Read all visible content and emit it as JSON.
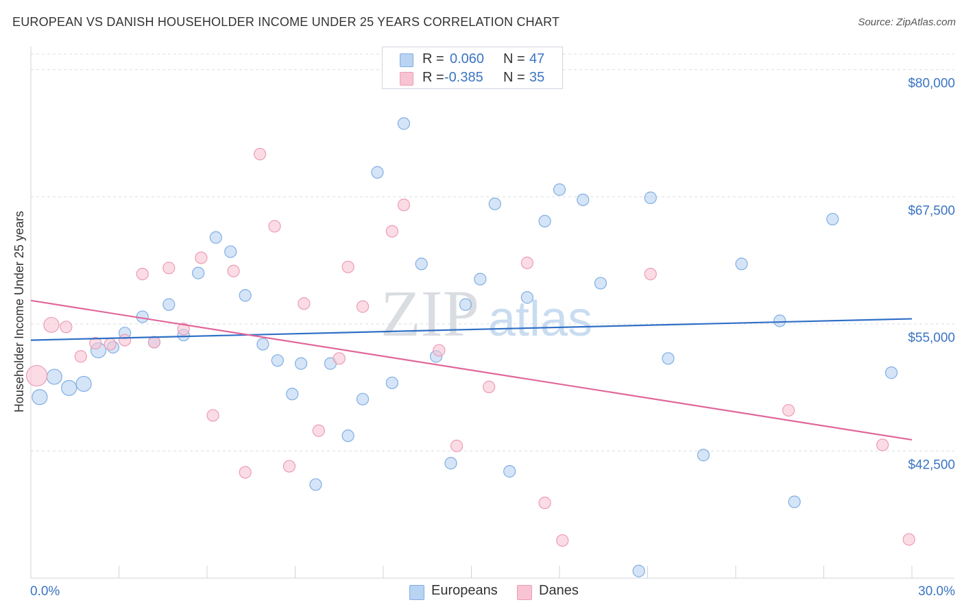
{
  "header": {
    "title": "EUROPEAN VS DANISH HOUSEHOLDER INCOME UNDER 25 YEARS CORRELATION CHART",
    "source": "Source: ZipAtlas.com"
  },
  "legend": {
    "rows": [
      {
        "r_label": "R =",
        "r_value": "0.060",
        "n_label": "N =",
        "n_value": "47"
      },
      {
        "r_label": "R =",
        "r_value": "-0.385",
        "n_label": "N =",
        "n_value": "35"
      }
    ]
  },
  "bottom_legend": {
    "items": [
      "Europeans",
      "Danes"
    ]
  },
  "watermark": {
    "zip": "ZIP",
    "atlas": "atlas"
  },
  "colors": {
    "europeans_fill": "#b9d3f2",
    "europeans_stroke": "#7faee3",
    "europeans_line": "#2f6fc6",
    "danes_fill": "#f8c4d4",
    "danes_stroke": "#ec9bb6",
    "danes_line": "#e0669a",
    "axis_text": "#3a74c2",
    "grid": "#d8dde4"
  },
  "chart_data": {
    "type": "scatter",
    "title": "EUROPEAN VS DANISH HOUSEHOLDER INCOME UNDER 25 YEARS CORRELATION CHART",
    "xlabel": "",
    "ylabel": "Householder Income Under 25 years",
    "xlim": [
      0,
      30
    ],
    "ylim": [
      30000,
      82000
    ],
    "x_tick_labels": [
      "0.0%",
      "30.0%"
    ],
    "y_ticks": [
      42500,
      55000,
      67500,
      80000
    ],
    "y_tick_labels": [
      "$42,500",
      "$55,000",
      "$67,500",
      "$80,000"
    ],
    "grid": "horizontal dashed",
    "legend_placement": "top-center",
    "series": [
      {
        "name": "Europeans",
        "r": 0.06,
        "n": 47,
        "trend": {
          "x0": 0,
          "y0": 53400,
          "x1": 30,
          "y1": 55500
        },
        "points": [
          {
            "x": 0.3,
            "y": 47800,
            "s": 2
          },
          {
            "x": 0.8,
            "y": 49800,
            "s": 2
          },
          {
            "x": 1.3,
            "y": 48700,
            "s": 2
          },
          {
            "x": 1.8,
            "y": 49100,
            "s": 2
          },
          {
            "x": 2.3,
            "y": 52400,
            "s": 2
          },
          {
            "x": 2.8,
            "y": 52700,
            "s": 1
          },
          {
            "x": 3.2,
            "y": 54100,
            "s": 1
          },
          {
            "x": 3.8,
            "y": 55700,
            "s": 1
          },
          {
            "x": 4.2,
            "y": 53200,
            "s": 1
          },
          {
            "x": 4.7,
            "y": 56900,
            "s": 1
          },
          {
            "x": 5.2,
            "y": 53900,
            "s": 1
          },
          {
            "x": 5.7,
            "y": 60000,
            "s": 1
          },
          {
            "x": 6.3,
            "y": 63500,
            "s": 1
          },
          {
            "x": 6.8,
            "y": 62100,
            "s": 1
          },
          {
            "x": 7.3,
            "y": 57800,
            "s": 1
          },
          {
            "x": 7.9,
            "y": 53000,
            "s": 1
          },
          {
            "x": 8.4,
            "y": 51400,
            "s": 1
          },
          {
            "x": 8.9,
            "y": 48100,
            "s": 1
          },
          {
            "x": 9.2,
            "y": 51100,
            "s": 1
          },
          {
            "x": 9.7,
            "y": 39200,
            "s": 1
          },
          {
            "x": 10.2,
            "y": 51100,
            "s": 1
          },
          {
            "x": 10.8,
            "y": 44000,
            "s": 1
          },
          {
            "x": 11.3,
            "y": 47600,
            "s": 1
          },
          {
            "x": 11.8,
            "y": 69900,
            "s": 1
          },
          {
            "x": 12.3,
            "y": 49200,
            "s": 1
          },
          {
            "x": 12.7,
            "y": 74700,
            "s": 1
          },
          {
            "x": 13.3,
            "y": 60900,
            "s": 1
          },
          {
            "x": 13.8,
            "y": 51800,
            "s": 1
          },
          {
            "x": 14.3,
            "y": 41300,
            "s": 1
          },
          {
            "x": 14.8,
            "y": 56900,
            "s": 1
          },
          {
            "x": 15.3,
            "y": 59400,
            "s": 1
          },
          {
            "x": 15.8,
            "y": 66800,
            "s": 1
          },
          {
            "x": 16.3,
            "y": 40500,
            "s": 1
          },
          {
            "x": 16.9,
            "y": 57600,
            "s": 1
          },
          {
            "x": 17.5,
            "y": 65100,
            "s": 1
          },
          {
            "x": 18.0,
            "y": 68200,
            "s": 1
          },
          {
            "x": 18.8,
            "y": 67200,
            "s": 1
          },
          {
            "x": 19.4,
            "y": 59000,
            "s": 1
          },
          {
            "x": 20.7,
            "y": 30700,
            "s": 1
          },
          {
            "x": 21.1,
            "y": 67400,
            "s": 1
          },
          {
            "x": 21.7,
            "y": 51600,
            "s": 1
          },
          {
            "x": 22.9,
            "y": 42100,
            "s": 1
          },
          {
            "x": 24.2,
            "y": 60900,
            "s": 1
          },
          {
            "x": 25.5,
            "y": 55300,
            "s": 1
          },
          {
            "x": 26.0,
            "y": 37500,
            "s": 1
          },
          {
            "x": 27.3,
            "y": 65300,
            "s": 1
          },
          {
            "x": 29.3,
            "y": 50200,
            "s": 1
          }
        ]
      },
      {
        "name": "Danes",
        "r": -0.385,
        "n": 35,
        "trend": {
          "x0": 0,
          "y0": 57300,
          "x1": 30,
          "y1": 43600
        },
        "points": [
          {
            "x": 0.2,
            "y": 49900,
            "s": 3
          },
          {
            "x": 0.7,
            "y": 54900,
            "s": 2
          },
          {
            "x": 1.2,
            "y": 54700,
            "s": 1
          },
          {
            "x": 1.7,
            "y": 51800,
            "s": 1
          },
          {
            "x": 2.2,
            "y": 53100,
            "s": 1
          },
          {
            "x": 2.7,
            "y": 53000,
            "s": 1
          },
          {
            "x": 3.2,
            "y": 53400,
            "s": 1
          },
          {
            "x": 3.8,
            "y": 59900,
            "s": 1
          },
          {
            "x": 4.2,
            "y": 53200,
            "s": 1
          },
          {
            "x": 4.7,
            "y": 60500,
            "s": 1
          },
          {
            "x": 5.2,
            "y": 54500,
            "s": 1
          },
          {
            "x": 5.8,
            "y": 61500,
            "s": 1
          },
          {
            "x": 6.2,
            "y": 46000,
            "s": 1
          },
          {
            "x": 6.9,
            "y": 60200,
            "s": 1
          },
          {
            "x": 7.3,
            "y": 40400,
            "s": 1
          },
          {
            "x": 7.8,
            "y": 71700,
            "s": 1
          },
          {
            "x": 8.3,
            "y": 64600,
            "s": 1
          },
          {
            "x": 8.8,
            "y": 41000,
            "s": 1
          },
          {
            "x": 9.3,
            "y": 57000,
            "s": 1
          },
          {
            "x": 9.8,
            "y": 44500,
            "s": 1
          },
          {
            "x": 10.5,
            "y": 51600,
            "s": 1
          },
          {
            "x": 10.8,
            "y": 60600,
            "s": 1
          },
          {
            "x": 11.3,
            "y": 56700,
            "s": 1
          },
          {
            "x": 12.3,
            "y": 64100,
            "s": 1
          },
          {
            "x": 12.7,
            "y": 66700,
            "s": 1
          },
          {
            "x": 13.9,
            "y": 52400,
            "s": 1
          },
          {
            "x": 14.5,
            "y": 43000,
            "s": 1
          },
          {
            "x": 15.6,
            "y": 48800,
            "s": 1
          },
          {
            "x": 16.9,
            "y": 61000,
            "s": 1
          },
          {
            "x": 17.5,
            "y": 37400,
            "s": 1
          },
          {
            "x": 18.1,
            "y": 33700,
            "s": 1
          },
          {
            "x": 21.1,
            "y": 59900,
            "s": 1
          },
          {
            "x": 25.8,
            "y": 46500,
            "s": 1
          },
          {
            "x": 29.0,
            "y": 43100,
            "s": 1
          },
          {
            "x": 29.9,
            "y": 33800,
            "s": 1
          }
        ]
      }
    ]
  }
}
